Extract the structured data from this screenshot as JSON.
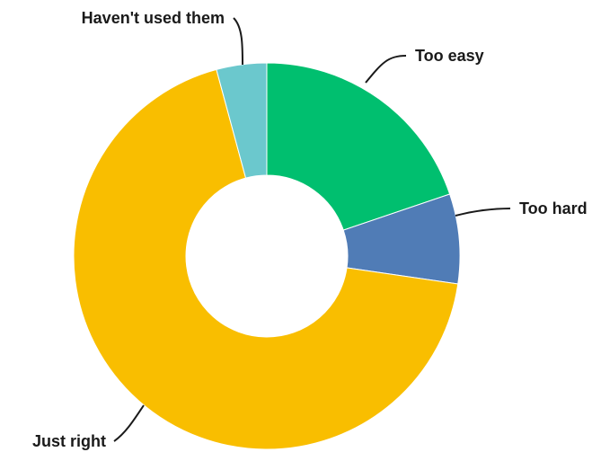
{
  "chart_data": {
    "type": "pie",
    "donut": true,
    "slices": [
      {
        "label": "Too easy",
        "value": 19.8,
        "color": "#00bf6f"
      },
      {
        "label": "Too hard",
        "value": 7.5,
        "color": "#507cb6"
      },
      {
        "label": "Just right",
        "value": 68.5,
        "color": "#f9be00"
      },
      {
        "label": "Haven't used them",
        "value": 4.2,
        "color": "#6bc8cd"
      }
    ],
    "start": "12 o'clock",
    "direction": "clockwise",
    "legend": "none (labels on leader lines)"
  }
}
